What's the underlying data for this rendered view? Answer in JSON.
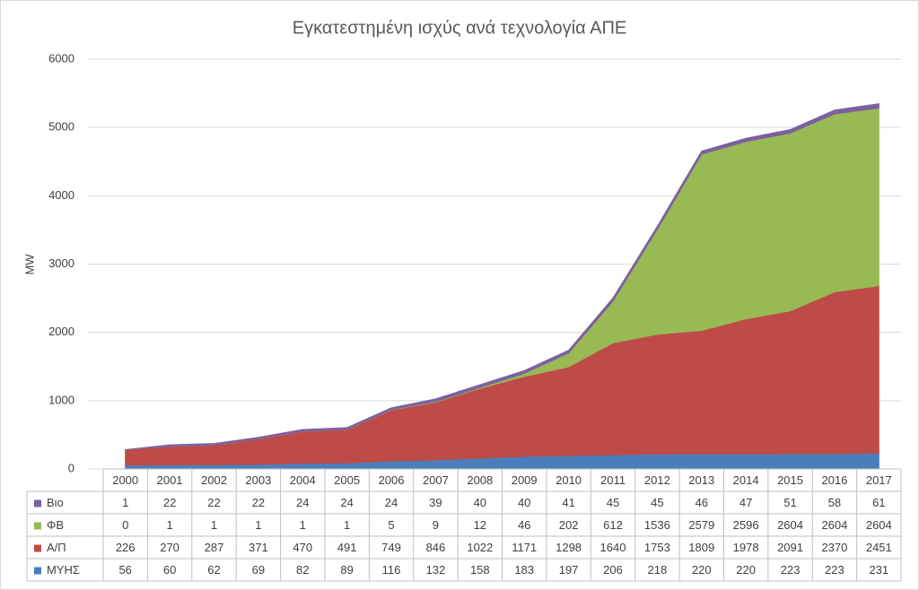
{
  "chart_data": {
    "type": "area",
    "stacked": true,
    "title": "Εγκατεστημένη ισχύς ανά τεχνολογία ΑΠΕ",
    "y_label": "MW",
    "categories": [
      "2000",
      "2001",
      "2002",
      "2003",
      "2004",
      "2005",
      "2006",
      "2007",
      "2008",
      "2009",
      "2010",
      "2011",
      "2012",
      "2013",
      "2014",
      "2015",
      "2016",
      "2017"
    ],
    "series": [
      {
        "name": "ΜΥΗΣ",
        "color": "#4a7ebb",
        "values": [
          56,
          60,
          62,
          69,
          82,
          89,
          116,
          132,
          158,
          183,
          197,
          206,
          218,
          220,
          220,
          223,
          223,
          231
        ]
      },
      {
        "name": "Α/Π",
        "color": "#be4b48",
        "values": [
          226,
          270,
          287,
          371,
          470,
          491,
          749,
          846,
          1022,
          1171,
          1298,
          1640,
          1753,
          1809,
          1978,
          2091,
          2370,
          2451
        ]
      },
      {
        "name": "ΦΒ",
        "color": "#98b954",
        "values": [
          0,
          1,
          1,
          1,
          1,
          1,
          5,
          9,
          12,
          46,
          202,
          612,
          1536,
          2579,
          2596,
          2604,
          2604,
          2604
        ]
      },
      {
        "name": "Βιο",
        "color": "#7d60a0",
        "values": [
          1,
          22,
          22,
          22,
          24,
          24,
          24,
          39,
          40,
          40,
          41,
          45,
          45,
          46,
          47,
          51,
          58,
          61
        ]
      }
    ],
    "ylim": [
      0,
      6000
    ],
    "yticks": [
      0,
      1000,
      2000,
      3000,
      4000,
      5000,
      6000
    ],
    "grid": true
  }
}
